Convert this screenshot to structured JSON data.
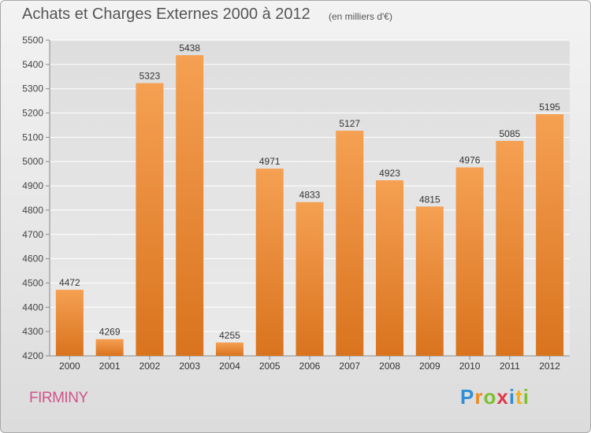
{
  "title": "Achats et Charges Externes 2000 à 2012",
  "subtitle": "(en milliers d'€)",
  "location": "FIRMINY",
  "logo": {
    "text": "Proxiti",
    "letters": [
      {
        "ch": "P",
        "color": "#2e8fd6"
      },
      {
        "ch": "r",
        "color": "#f08a1c"
      },
      {
        "ch": "o",
        "color": "#7cbf2f"
      },
      {
        "ch": "x",
        "color": "#e0384a"
      },
      {
        "ch": "i",
        "color": "#2e8fd6"
      },
      {
        "ch": "t",
        "color": "#f0b21c"
      },
      {
        "ch": "i",
        "color": "#7cbf2f"
      }
    ]
  },
  "chart_data": {
    "type": "bar",
    "title": "Achats et Charges Externes 2000 à 2012",
    "subtitle": "(en milliers d'€)",
    "categories": [
      "2000",
      "2001",
      "2002",
      "2003",
      "2004",
      "2005",
      "2006",
      "2007",
      "2008",
      "2009",
      "2010",
      "2011",
      "2012"
    ],
    "values": [
      4472,
      4269,
      5323,
      5438,
      4255,
      4971,
      4833,
      5127,
      4923,
      4815,
      4976,
      5085,
      5195
    ],
    "yticks": [
      4200,
      4300,
      4400,
      4500,
      4600,
      4700,
      4800,
      4900,
      5000,
      5100,
      5200,
      5300,
      5400,
      5500
    ],
    "ylim": [
      4200,
      5500
    ],
    "grid": true,
    "bar_color": "#f0923a",
    "bar_color_dark": "#d9731e"
  }
}
